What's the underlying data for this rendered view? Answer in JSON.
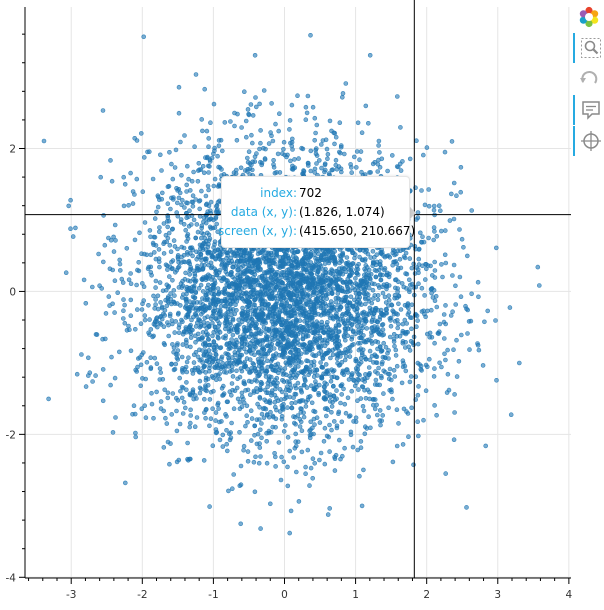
{
  "chart_data": {
    "type": "scatter",
    "title": "",
    "xlabel": "",
    "ylabel": "",
    "xlim": [
      -3.65,
      4.03
    ],
    "ylim": [
      -4.01,
      3.98
    ],
    "x_ticks": [
      -3,
      -2,
      -1,
      0,
      1,
      2,
      3,
      4
    ],
    "y_ticks": [
      -4,
      -2,
      0,
      2
    ],
    "grid": true,
    "legend": "none",
    "series": [
      {
        "distribution": "bivariate standard normal",
        "count": 5000,
        "mean": [
          0,
          0
        ],
        "std": [
          1,
          1
        ],
        "color": "#1f77b4",
        "fill_alpha": 0.6
      }
    ],
    "crosshair": {
      "x": 1.826,
      "y": 1.074
    },
    "hover_tooltip": {
      "fields": [
        {
          "label": "index:",
          "value": "702"
        },
        {
          "label": "data (x, y):",
          "value": "(1.826, 1.074)"
        },
        {
          "label": "screen (x, y):",
          "value": "(415.650, 210.667)"
        }
      ]
    }
  },
  "toolbar": {
    "tools": [
      {
        "icon": "bokeh-logo-icon",
        "active": false
      },
      {
        "icon": "box-zoom-icon",
        "active": true
      },
      {
        "icon": "reset-icon",
        "active": false
      },
      {
        "icon": "hover-icon",
        "active": true
      },
      {
        "icon": "crosshair-icon",
        "active": true
      }
    ],
    "accent_color": "#26aae1"
  }
}
